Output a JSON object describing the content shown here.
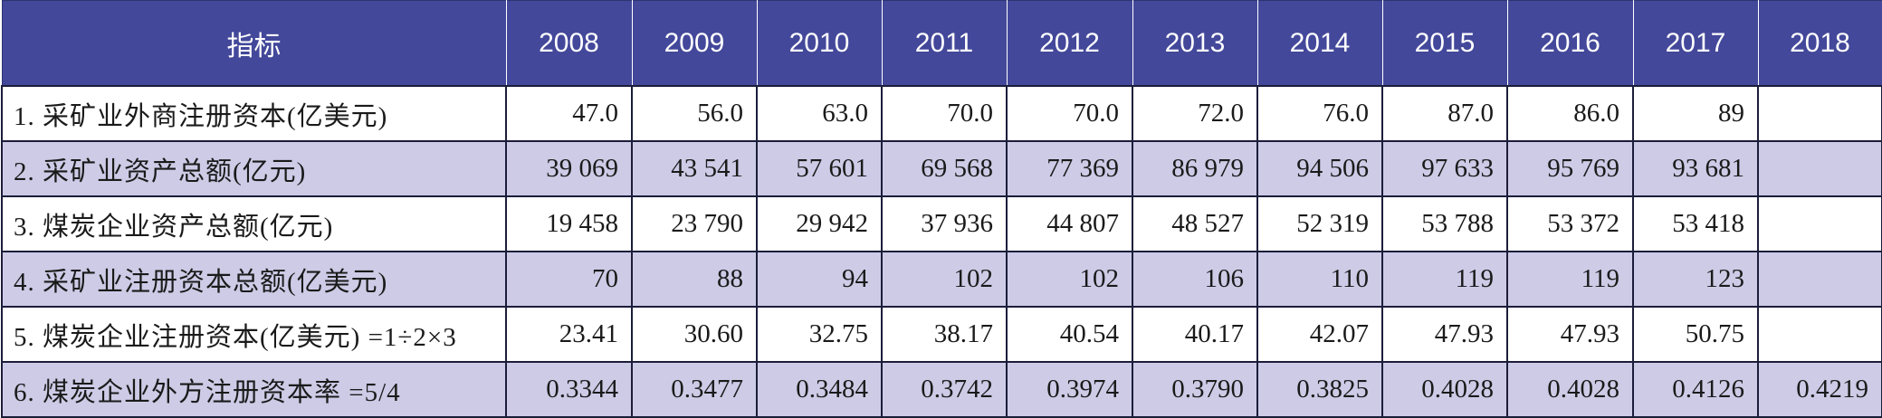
{
  "table": {
    "headers": [
      "指标",
      "2008",
      "2009",
      "2010",
      "2011",
      "2012",
      "2013",
      "2014",
      "2015",
      "2016",
      "2017",
      "2018"
    ],
    "rows": [
      {
        "label": "1. 采矿业外商注册资本(亿美元)",
        "values": [
          "47.0",
          "56.0",
          "63.0",
          "70.0",
          "70.0",
          "72.0",
          "76.0",
          "87.0",
          "86.0",
          "89",
          ""
        ]
      },
      {
        "label": "2. 采矿业资产总额(亿元)",
        "values": [
          "39 069",
          "43 541",
          "57 601",
          "69 568",
          "77 369",
          "86 979",
          "94 506",
          "97 633",
          "95 769",
          "93 681",
          ""
        ]
      },
      {
        "label": "3. 煤炭企业资产总额(亿元)",
        "values": [
          "19 458",
          "23 790",
          "29 942",
          "37 936",
          "44 807",
          "48 527",
          "52 319",
          "53 788",
          "53 372",
          "53 418",
          ""
        ]
      },
      {
        "label": "4. 采矿业注册资本总额(亿美元)",
        "values": [
          "70",
          "88",
          "94",
          "102",
          "102",
          "106",
          "110",
          "119",
          "119",
          "123",
          ""
        ]
      },
      {
        "label": "5. 煤炭企业注册资本(亿美元) =1÷2×3",
        "values": [
          "23.41",
          "30.60",
          "32.75",
          "38.17",
          "40.54",
          "40.17",
          "42.07",
          "47.93",
          "47.93",
          "50.75",
          ""
        ]
      },
      {
        "label": "6. 煤炭企业外方注册资本率 =5/4",
        "values": [
          "0.3344",
          "0.3477",
          "0.3484",
          "0.3742",
          "0.3974",
          "0.3790",
          "0.3825",
          "0.4028",
          "0.4028",
          "0.4126",
          "0.4219"
        ]
      }
    ]
  }
}
